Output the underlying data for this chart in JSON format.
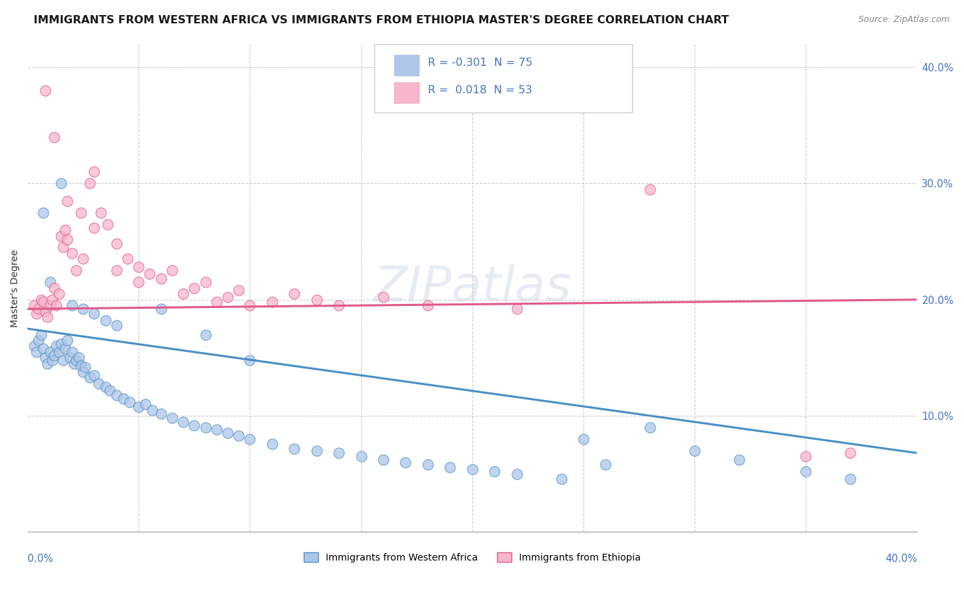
{
  "title": "IMMIGRANTS FROM WESTERN AFRICA VS IMMIGRANTS FROM ETHIOPIA MASTER'S DEGREE CORRELATION CHART",
  "source_text": "Source: ZipAtlas.com",
  "ylabel": "Master's Degree",
  "xlim": [
    0.0,
    0.4
  ],
  "ylim": [
    0.0,
    0.42
  ],
  "ytick_values": [
    0.1,
    0.2,
    0.3,
    0.4
  ],
  "color_blue": "#aec6e8",
  "color_pink": "#f7b6c9",
  "line_blue": "#4a90c4",
  "line_pink": "#e05a8a",
  "regression_blue_x0": 0.0,
  "regression_blue_y0": 0.175,
  "regression_blue_x1": 0.4,
  "regression_blue_y1": 0.068,
  "regression_pink_x0": 0.0,
  "regression_pink_y0": 0.192,
  "regression_pink_x1": 0.4,
  "regression_pink_y1": 0.2,
  "scatter_blue_x": [
    0.003,
    0.004,
    0.005,
    0.006,
    0.007,
    0.008,
    0.009,
    0.01,
    0.011,
    0.012,
    0.013,
    0.014,
    0.015,
    0.016,
    0.017,
    0.018,
    0.019,
    0.02,
    0.021,
    0.022,
    0.023,
    0.024,
    0.025,
    0.026,
    0.028,
    0.03,
    0.032,
    0.035,
    0.037,
    0.04,
    0.043,
    0.046,
    0.05,
    0.053,
    0.056,
    0.06,
    0.065,
    0.07,
    0.075,
    0.08,
    0.085,
    0.09,
    0.095,
    0.1,
    0.11,
    0.12,
    0.13,
    0.14,
    0.15,
    0.16,
    0.17,
    0.18,
    0.19,
    0.2,
    0.21,
    0.22,
    0.24,
    0.25,
    0.26,
    0.28,
    0.3,
    0.32,
    0.35,
    0.37,
    0.007,
    0.01,
    0.015,
    0.02,
    0.025,
    0.03,
    0.035,
    0.04,
    0.06,
    0.08,
    0.1
  ],
  "scatter_blue_y": [
    0.16,
    0.155,
    0.165,
    0.17,
    0.158,
    0.15,
    0.145,
    0.155,
    0.148,
    0.152,
    0.16,
    0.155,
    0.162,
    0.148,
    0.158,
    0.165,
    0.15,
    0.155,
    0.145,
    0.148,
    0.15,
    0.143,
    0.138,
    0.142,
    0.133,
    0.135,
    0.128,
    0.125,
    0.122,
    0.118,
    0.115,
    0.112,
    0.108,
    0.11,
    0.105,
    0.102,
    0.098,
    0.095,
    0.092,
    0.09,
    0.088,
    0.085,
    0.083,
    0.08,
    0.076,
    0.072,
    0.07,
    0.068,
    0.065,
    0.062,
    0.06,
    0.058,
    0.056,
    0.054,
    0.052,
    0.05,
    0.046,
    0.08,
    0.058,
    0.09,
    0.07,
    0.062,
    0.052,
    0.046,
    0.275,
    0.215,
    0.3,
    0.195,
    0.192,
    0.188,
    0.182,
    0.178,
    0.192,
    0.17,
    0.148
  ],
  "scatter_pink_x": [
    0.003,
    0.004,
    0.005,
    0.006,
    0.007,
    0.008,
    0.009,
    0.01,
    0.011,
    0.012,
    0.013,
    0.014,
    0.015,
    0.016,
    0.017,
    0.018,
    0.02,
    0.022,
    0.025,
    0.028,
    0.03,
    0.033,
    0.036,
    0.04,
    0.045,
    0.05,
    0.055,
    0.06,
    0.065,
    0.07,
    0.075,
    0.08,
    0.085,
    0.09,
    0.095,
    0.1,
    0.11,
    0.12,
    0.13,
    0.14,
    0.16,
    0.18,
    0.22,
    0.28,
    0.35,
    0.37,
    0.008,
    0.012,
    0.018,
    0.024,
    0.03,
    0.04,
    0.05
  ],
  "scatter_pink_y": [
    0.195,
    0.188,
    0.192,
    0.2,
    0.198,
    0.19,
    0.185,
    0.195,
    0.2,
    0.21,
    0.195,
    0.205,
    0.255,
    0.245,
    0.26,
    0.252,
    0.24,
    0.225,
    0.235,
    0.3,
    0.31,
    0.275,
    0.265,
    0.248,
    0.235,
    0.228,
    0.222,
    0.218,
    0.225,
    0.205,
    0.21,
    0.215,
    0.198,
    0.202,
    0.208,
    0.195,
    0.198,
    0.205,
    0.2,
    0.195,
    0.202,
    0.195,
    0.192,
    0.295,
    0.065,
    0.068,
    0.38,
    0.34,
    0.285,
    0.275,
    0.262,
    0.225,
    0.215
  ],
  "background_color": "#ffffff",
  "grid_color": "#cccccc",
  "title_fontsize": 11.5,
  "axis_label_fontsize": 10,
  "tick_fontsize": 10.5
}
